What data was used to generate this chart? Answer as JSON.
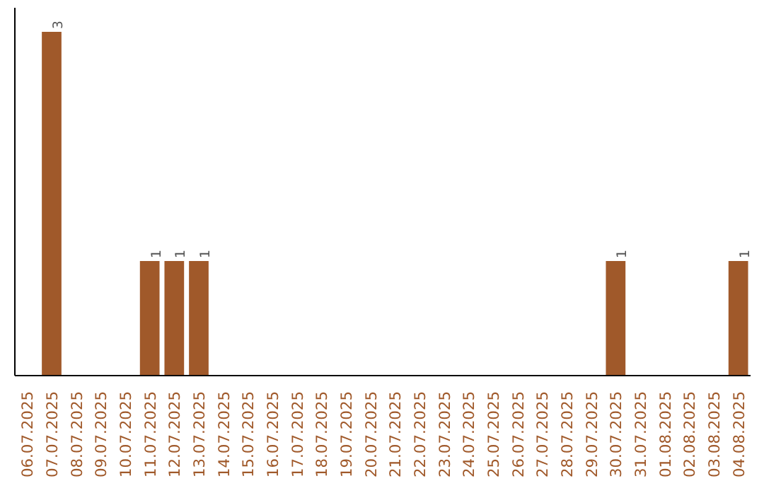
{
  "chart_data": {
    "type": "bar",
    "categories": [
      "06.07.2025",
      "07.07.2025",
      "08.07.2025",
      "09.07.2025",
      "10.07.2025",
      "11.07.2025",
      "12.07.2025",
      "13.07.2025",
      "14.07.2025",
      "15.07.2025",
      "16.07.2025",
      "17.07.2025",
      "18.07.2025",
      "19.07.2025",
      "20.07.2025",
      "21.07.2025",
      "22.07.2025",
      "23.07.2025",
      "24.07.2025",
      "25.07.2025",
      "26.07.2025",
      "27.07.2025",
      "28.07.2025",
      "29.07.2025",
      "30.07.2025",
      "31.07.2025",
      "01.08.2025",
      "02.08.2025",
      "03.08.2025",
      "04.08.2025"
    ],
    "values": [
      0,
      3,
      0,
      0,
      0,
      1,
      1,
      1,
      0,
      0,
      0,
      0,
      0,
      0,
      0,
      0,
      0,
      0,
      0,
      0,
      0,
      0,
      0,
      0,
      1,
      0,
      0,
      0,
      0,
      1
    ],
    "value_labels": [
      null,
      "3",
      null,
      null,
      null,
      "1",
      "1",
      "1",
      null,
      null,
      null,
      null,
      null,
      null,
      null,
      null,
      null,
      null,
      null,
      null,
      null,
      null,
      null,
      null,
      "1",
      null,
      null,
      null,
      null,
      "1"
    ],
    "color": "#a0592a",
    "grid": false,
    "tick_labels": "x"
  }
}
